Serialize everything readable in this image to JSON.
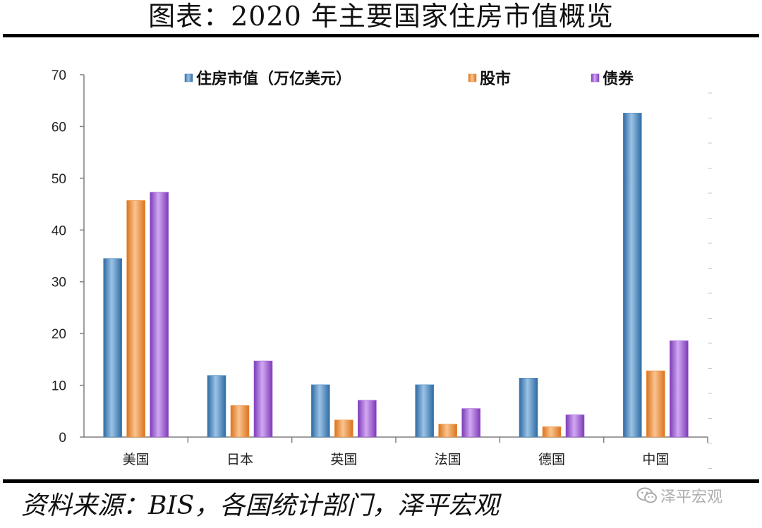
{
  "title": "图表：2020 年主要国家住房市值概览",
  "source": "资料来源：BIS，各国统计部门，泽平宏观",
  "watermark": "泽平宏观",
  "chart_data": {
    "type": "bar",
    "categories": [
      "美国",
      "日本",
      "英国",
      "法国",
      "德国",
      "中国"
    ],
    "series": [
      {
        "name": "住房市值（万亿美元）",
        "color": "#4a8bc4",
        "values": [
          34.5,
          11.9,
          10.1,
          10.1,
          11.4,
          62.6
        ]
      },
      {
        "name": "股市",
        "color": "#f0913a",
        "values": [
          45.7,
          6.1,
          3.3,
          2.5,
          2.0,
          12.8
        ]
      },
      {
        "name": "债券",
        "color": "#9b59d0",
        "values": [
          47.3,
          14.7,
          7.1,
          5.5,
          4.3,
          18.6
        ]
      }
    ],
    "ylim": [
      0,
      70
    ],
    "yticks": [
      0,
      10,
      20,
      30,
      40,
      50,
      60,
      70
    ],
    "legend": "top",
    "grid": false
  }
}
